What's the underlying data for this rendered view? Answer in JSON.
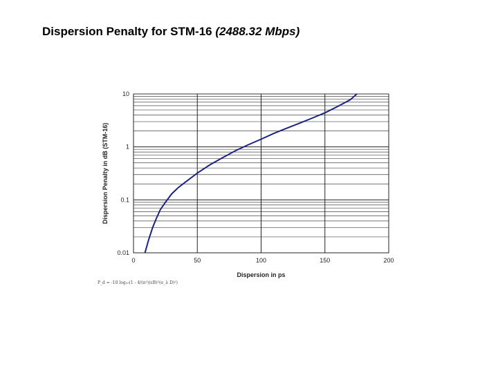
{
  "header": {
    "title_main": "Dispersion Penalty for STM-16",
    "title_sub": "(2488.32 Mbps)"
  },
  "formula": "P_d = -10 log₁₀(1 - 4/(π²)(εB)²(σ_λ D)²)",
  "chart_data": {
    "type": "line",
    "xlabel": "Dispersion in ps",
    "ylabel": "Dispersion Penalty in dB (STM-16)",
    "xlim": [
      0,
      200
    ],
    "ylim": [
      0.01,
      10
    ],
    "yscale": "log",
    "xticks": [
      "0",
      "50",
      "100",
      "150",
      "200"
    ],
    "yticks": [
      "0.01",
      "0.1",
      "1",
      "10"
    ],
    "grid": true,
    "line_color": "#1a237e",
    "series": [
      {
        "x": [
          9,
          12,
          15,
          18,
          21,
          25,
          30,
          35,
          40,
          50,
          60,
          70,
          80,
          90,
          100,
          110,
          120,
          130,
          140,
          150,
          160,
          170,
          175
        ],
        "y": [
          0.01,
          0.018,
          0.03,
          0.045,
          0.065,
          0.09,
          0.13,
          0.17,
          0.21,
          0.32,
          0.46,
          0.63,
          0.85,
          1.1,
          1.4,
          1.8,
          2.25,
          2.8,
          3.5,
          4.4,
          5.8,
          7.8,
          10
        ]
      }
    ]
  }
}
